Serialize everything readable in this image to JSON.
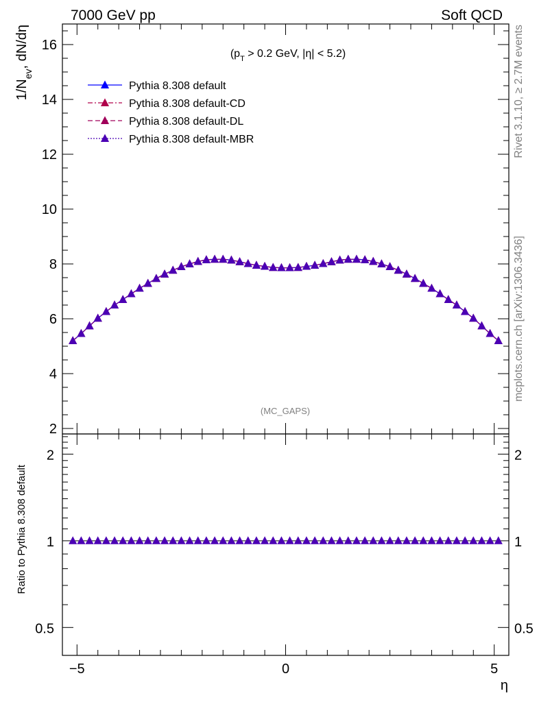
{
  "header": {
    "left": "7000 GeV pp",
    "right": "Soft QCD"
  },
  "side_text": {
    "rivet": "Rivet 3.1.10, ≥ 2.7M events",
    "mcplots": "mcplots.cern.ch [arXiv:1306.3436]"
  },
  "chart_data": [
    {
      "type": "line",
      "title": "(pT > 0.2 GeV, |η| < 5.2)",
      "ylabel": "1/Nev, dN/dη",
      "watermark": "(MC_GAPS)",
      "xlim": [
        -5.35,
        5.35
      ],
      "ylim": [
        1.8,
        16.75
      ],
      "yticks": [
        2,
        4,
        6,
        8,
        10,
        12,
        14,
        16
      ],
      "x": [
        -5.1,
        -4.9,
        -4.7,
        -4.5,
        -4.3,
        -4.1,
        -3.9,
        -3.7,
        -3.5,
        -3.3,
        -3.1,
        -2.9,
        -2.7,
        -2.5,
        -2.3,
        -2.1,
        -1.9,
        -1.7,
        -1.5,
        -1.3,
        -1.1,
        -0.9,
        -0.7,
        -0.5,
        -0.3,
        -0.1,
        0.1,
        0.3,
        0.5,
        0.7,
        0.9,
        1.1,
        1.3,
        1.5,
        1.7,
        1.9,
        2.1,
        2.3,
        2.5,
        2.7,
        2.9,
        3.1,
        3.3,
        3.5,
        3.7,
        3.9,
        4.1,
        4.3,
        4.5,
        4.7,
        4.9,
        5.1
      ],
      "series": [
        {
          "name": "Pythia 8.308 default",
          "color": "#0000ff",
          "dash": "solid",
          "values": [
            5.2,
            5.46,
            5.74,
            6.02,
            6.26,
            6.5,
            6.7,
            6.91,
            7.11,
            7.29,
            7.47,
            7.63,
            7.77,
            7.9,
            8.0,
            8.09,
            8.15,
            8.17,
            8.17,
            8.14,
            8.08,
            8.01,
            7.95,
            7.91,
            7.87,
            7.86,
            7.86,
            7.87,
            7.91,
            7.95,
            8.01,
            8.08,
            8.14,
            8.17,
            8.17,
            8.15,
            8.09,
            8.0,
            7.9,
            7.77,
            7.63,
            7.47,
            7.29,
            7.11,
            6.91,
            6.7,
            6.5,
            6.26,
            6.02,
            5.74,
            5.46,
            5.2
          ]
        },
        {
          "name": "Pythia 8.308 default-CD",
          "color": "#b0004a",
          "dash": "dashdot",
          "values": [
            5.2,
            5.46,
            5.74,
            6.02,
            6.26,
            6.5,
            6.7,
            6.91,
            7.11,
            7.29,
            7.47,
            7.63,
            7.77,
            7.9,
            8.0,
            8.09,
            8.15,
            8.17,
            8.17,
            8.14,
            8.08,
            8.01,
            7.95,
            7.91,
            7.87,
            7.86,
            7.86,
            7.87,
            7.91,
            7.95,
            8.01,
            8.08,
            8.14,
            8.17,
            8.17,
            8.15,
            8.09,
            8.0,
            7.9,
            7.77,
            7.63,
            7.47,
            7.29,
            7.11,
            6.91,
            6.7,
            6.5,
            6.26,
            6.02,
            5.74,
            5.46,
            5.2
          ]
        },
        {
          "name": "Pythia 8.308 default-DL",
          "color": "#a0005a",
          "dash": "dashed",
          "values": [
            5.2,
            5.46,
            5.74,
            6.02,
            6.26,
            6.5,
            6.7,
            6.91,
            7.11,
            7.29,
            7.47,
            7.63,
            7.77,
            7.9,
            8.0,
            8.09,
            8.15,
            8.17,
            8.17,
            8.14,
            8.08,
            8.01,
            7.95,
            7.91,
            7.87,
            7.86,
            7.86,
            7.87,
            7.91,
            7.95,
            8.01,
            8.08,
            8.14,
            8.17,
            8.17,
            8.15,
            8.09,
            8.0,
            7.9,
            7.77,
            7.63,
            7.47,
            7.29,
            7.11,
            6.91,
            6.7,
            6.5,
            6.26,
            6.02,
            5.74,
            5.46,
            5.2
          ]
        },
        {
          "name": "Pythia 8.308 default-MBR",
          "color": "#4b00b4",
          "dash": "dotted",
          "values": [
            5.2,
            5.46,
            5.74,
            6.02,
            6.26,
            6.5,
            6.7,
            6.91,
            7.11,
            7.29,
            7.47,
            7.63,
            7.77,
            7.9,
            8.0,
            8.09,
            8.15,
            8.17,
            8.17,
            8.14,
            8.08,
            8.01,
            7.95,
            7.91,
            7.87,
            7.86,
            7.86,
            7.87,
            7.91,
            7.95,
            8.01,
            8.08,
            8.14,
            8.17,
            8.17,
            8.15,
            8.09,
            8.0,
            7.9,
            7.77,
            7.63,
            7.47,
            7.29,
            7.11,
            6.91,
            6.7,
            6.5,
            6.26,
            6.02,
            5.74,
            5.46,
            5.2
          ]
        }
      ]
    },
    {
      "type": "line",
      "ylabel": "Ratio to Pythia 8.308 default",
      "xlabel": "η",
      "xlim": [
        -5.35,
        5.35
      ],
      "xticks": [
        -5,
        0,
        5
      ],
      "xtick_labels": [
        "−5",
        "0",
        "5"
      ],
      "ylog": true,
      "ylim": [
        0.4,
        2.35
      ],
      "yticks": [
        0.5,
        1,
        2
      ],
      "ytick_labels": [
        "0.5",
        "1",
        "2"
      ],
      "series": [
        {
          "name": "Pythia 8.308 default-MBR",
          "color": "#4b00b4",
          "values": "ratio = 1.0 at every x"
        }
      ]
    }
  ]
}
